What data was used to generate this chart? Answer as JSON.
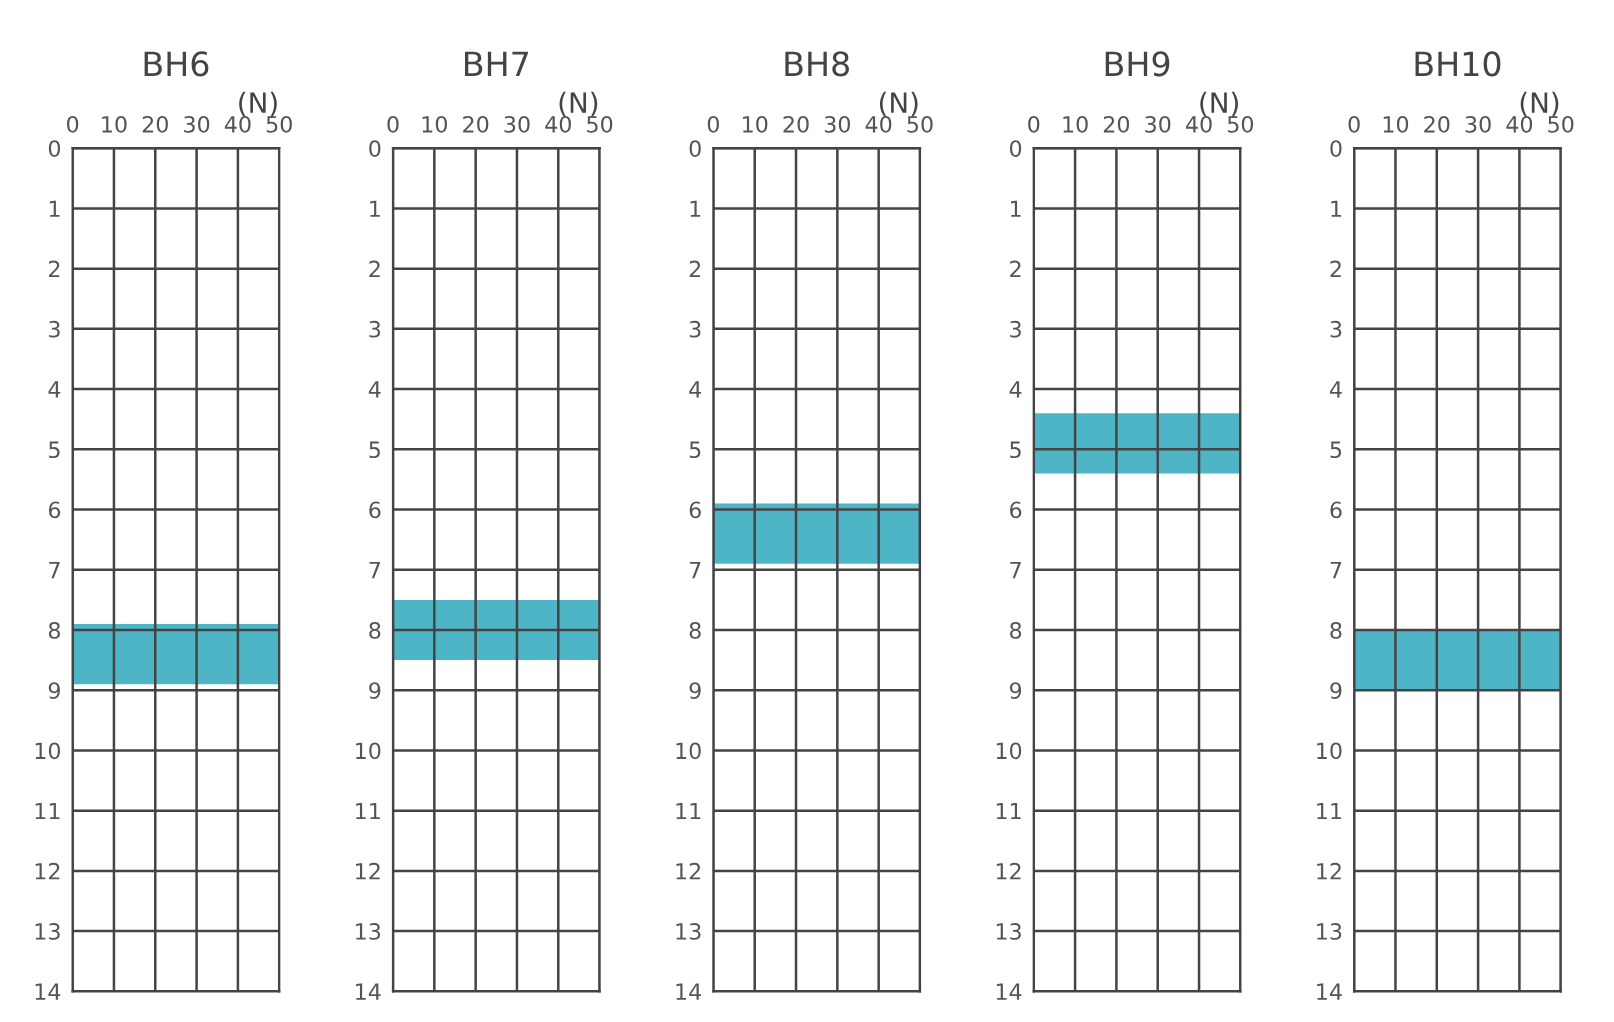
{
  "chart_data": [
    {
      "type": "line",
      "title": "BH6",
      "xlabel": "(N)",
      "xlim": [
        0,
        50
      ],
      "xticks": [
        0,
        10,
        20,
        30,
        40,
        50
      ],
      "ylim": [
        14,
        0
      ],
      "yticks": [
        0,
        1,
        2,
        3,
        4,
        5,
        6,
        7,
        8,
        9,
        10,
        11,
        12,
        13,
        14
      ],
      "grid": true,
      "bands": [
        {
          "axis": "y",
          "from": 7.9,
          "to": 8.9,
          "color": "#2fa8bd"
        }
      ]
    },
    {
      "type": "line",
      "title": "BH7",
      "xlabel": "(N)",
      "xlim": [
        0,
        50
      ],
      "xticks": [
        0,
        10,
        20,
        30,
        40,
        50
      ],
      "ylim": [
        14,
        0
      ],
      "yticks": [
        0,
        1,
        2,
        3,
        4,
        5,
        6,
        7,
        8,
        9,
        10,
        11,
        12,
        13,
        14
      ],
      "grid": true,
      "bands": [
        {
          "axis": "y",
          "from": 7.5,
          "to": 8.5,
          "color": "#2fa8bd"
        }
      ]
    },
    {
      "type": "line",
      "title": "BH8",
      "xlabel": "(N)",
      "xlim": [
        0,
        50
      ],
      "xticks": [
        0,
        10,
        20,
        30,
        40,
        50
      ],
      "ylim": [
        14,
        0
      ],
      "yticks": [
        0,
        1,
        2,
        3,
        4,
        5,
        6,
        7,
        8,
        9,
        10,
        11,
        12,
        13,
        14
      ],
      "grid": true,
      "bands": [
        {
          "axis": "y",
          "from": 5.9,
          "to": 6.9,
          "color": "#2fa8bd"
        }
      ]
    },
    {
      "type": "line",
      "title": "BH9",
      "xlabel": "(N)",
      "xlim": [
        0,
        50
      ],
      "xticks": [
        0,
        10,
        20,
        30,
        40,
        50
      ],
      "ylim": [
        14,
        0
      ],
      "yticks": [
        0,
        1,
        2,
        3,
        4,
        5,
        6,
        7,
        8,
        9,
        10,
        11,
        12,
        13,
        14
      ],
      "grid": true,
      "bands": [
        {
          "axis": "y",
          "from": 4.4,
          "to": 5.4,
          "color": "#2fa8bd"
        }
      ]
    },
    {
      "type": "line",
      "title": "BH10",
      "xlabel": "(N)",
      "xlim": [
        0,
        50
      ],
      "xticks": [
        0,
        10,
        20,
        30,
        40,
        50
      ],
      "ylim": [
        14,
        0
      ],
      "yticks": [
        0,
        1,
        2,
        3,
        4,
        5,
        6,
        7,
        8,
        9,
        10,
        11,
        12,
        13,
        14
      ],
      "grid": true,
      "bands": [
        {
          "axis": "y",
          "from": 8.0,
          "to": 9.0,
          "color": "#2fa8bd"
        }
      ]
    }
  ]
}
